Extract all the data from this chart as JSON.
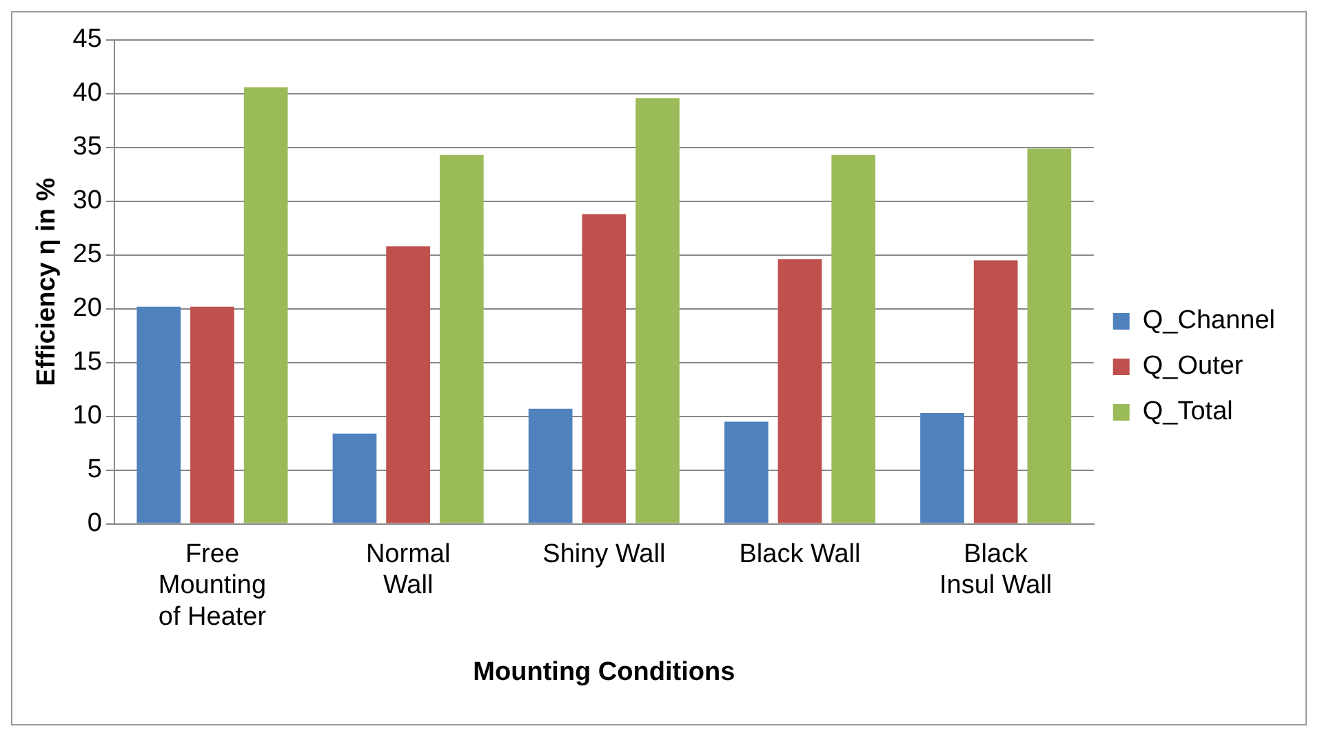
{
  "chart_data": {
    "type": "bar",
    "xlabel": "Mounting Conditions",
    "ylabel": "Efficiency η in %",
    "categories": [
      "Free Mounting of Heater",
      "Normal Wall",
      "Shiny Wall",
      "Black Wall",
      "Black Insul Wall"
    ],
    "series": [
      {
        "name": "Q_Channel",
        "color": "#4f81bd",
        "values": [
          20.2,
          8.4,
          10.7,
          9.5,
          10.3
        ]
      },
      {
        "name": "Q_Outer",
        "color": "#c0504d",
        "values": [
          20.2,
          25.8,
          28.8,
          24.6,
          24.5
        ]
      },
      {
        "name": "Q_Total",
        "color": "#9bbb59",
        "values": [
          40.6,
          34.3,
          39.6,
          34.3,
          34.9
        ]
      }
    ],
    "ylim": [
      0,
      45
    ],
    "yticks": [
      0,
      5,
      10,
      15,
      20,
      25,
      30,
      35,
      40,
      45
    ],
    "grid": "y",
    "legend": "right"
  }
}
